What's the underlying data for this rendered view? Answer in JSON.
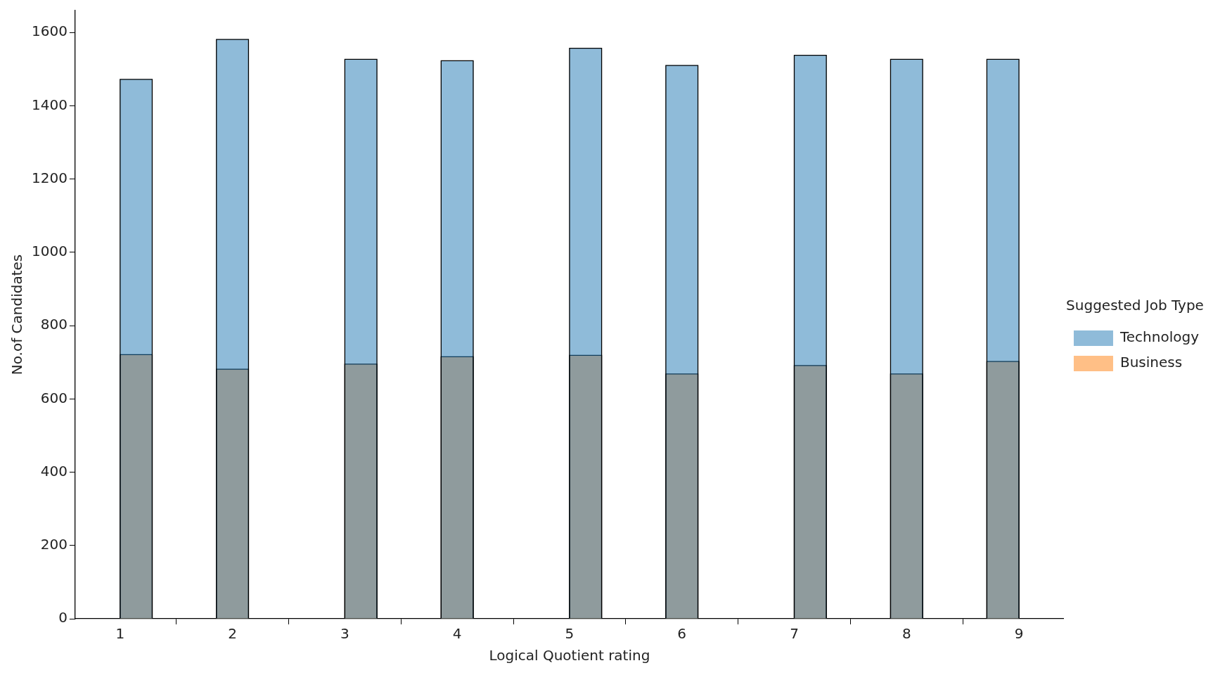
{
  "chart_data": {
    "type": "histogram",
    "xlabel": "Logical Quotient rating",
    "ylabel": "No.of Candidates",
    "legend_title": "Suggested Job Type",
    "bins": [
      1,
      1.2857,
      1.5714,
      1.8571,
      2.1429,
      2.4286,
      2.7143,
      3,
      3.2857,
      3.5714,
      3.8571,
      4.1429,
      4.4286,
      4.7143,
      5,
      5.2857,
      5.5714,
      5.8571,
      6.1429,
      6.4286,
      6.7143,
      7,
      7.2857,
      7.5714,
      7.8571,
      8.1429,
      8.4286,
      8.7143,
      9
    ],
    "series": [
      {
        "name": "Technology",
        "color": "#1f77b4",
        "values": [
          1472,
          0,
          0,
          1581,
          0,
          0,
          0,
          1527,
          0,
          0,
          1523,
          0,
          0,
          0,
          1557,
          0,
          0,
          1510,
          0,
          0,
          0,
          1538,
          0,
          0,
          1527,
          0,
          0,
          1527
        ]
      },
      {
        "name": "Business",
        "color": "#ff7f0e",
        "values": [
          721,
          0,
          0,
          681,
          0,
          0,
          0,
          695,
          0,
          0,
          715,
          0,
          0,
          0,
          719,
          0,
          0,
          668,
          0,
          0,
          0,
          691,
          0,
          0,
          668,
          0,
          0,
          702
        ]
      }
    ],
    "xlim": [
      0.6,
      9.4
    ],
    "xticks": [
      1,
      2,
      3,
      4,
      5,
      6,
      7,
      8,
      9
    ],
    "ylim": [
      0,
      1660
    ],
    "yticks": [
      0,
      200,
      400,
      600,
      800,
      1000,
      1200,
      1400,
      1600
    ],
    "grid": false,
    "legend": "right"
  }
}
